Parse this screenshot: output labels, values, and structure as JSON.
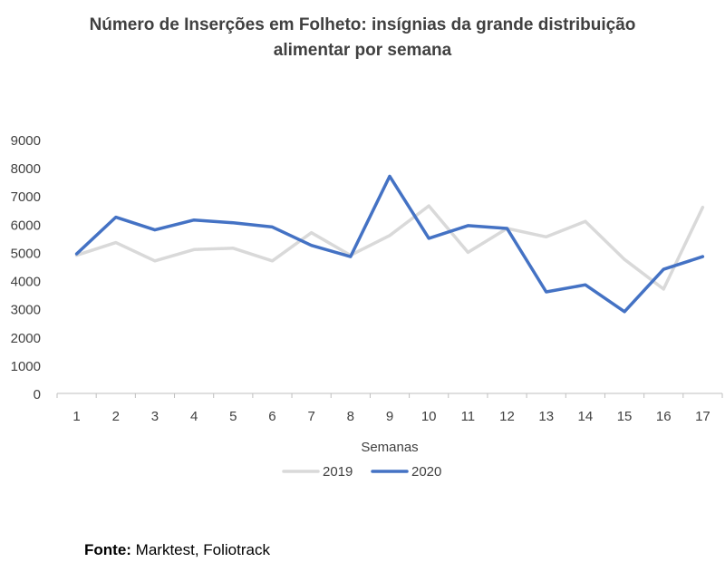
{
  "chart_data": {
    "type": "line",
    "title_line1": "Número de Inserções em Folheto: insígnias da grande distribuição",
    "title_line2": "alimentar  por semana",
    "xlabel": "Semanas",
    "ylabel": "",
    "categories": [
      "1",
      "2",
      "3",
      "4",
      "5",
      "6",
      "7",
      "8",
      "9",
      "10",
      "11",
      "12",
      "13",
      "14",
      "15",
      "16",
      "17"
    ],
    "ylim": [
      0,
      9000
    ],
    "yticks": [
      0,
      1000,
      2000,
      3000,
      4000,
      5000,
      6000,
      7000,
      8000,
      9000
    ],
    "grid": false,
    "legend_position": "bottom",
    "series": [
      {
        "name": "2019",
        "color": "#d9d9d9",
        "values": [
          4900,
          5350,
          4700,
          5100,
          5150,
          4700,
          5700,
          4900,
          5600,
          6650,
          5000,
          5850,
          5550,
          6100,
          4750,
          3700,
          6600
        ]
      },
      {
        "name": "2020",
        "color": "#4472c4",
        "values": [
          4950,
          6250,
          5800,
          6150,
          6050,
          5900,
          5250,
          4850,
          7700,
          5500,
          5950,
          5850,
          3600,
          3850,
          2900,
          4400,
          4850
        ]
      }
    ]
  },
  "source": {
    "label": "Fonte:",
    "text": " Marktest, Foliotrack"
  }
}
